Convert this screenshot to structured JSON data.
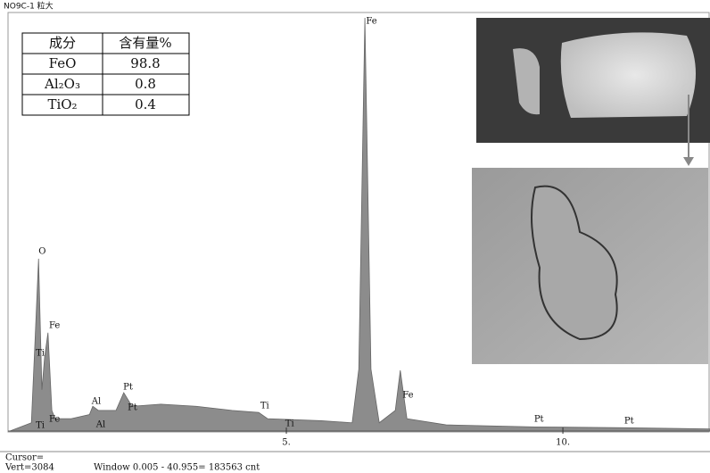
{
  "title_bar": "NO9C-1 粒大",
  "table": {
    "header": [
      "成分",
      "含有量%"
    ],
    "rows": [
      [
        "FeO",
        98.8
      ],
      [
        "Al₂O₃",
        0.8
      ],
      [
        "TiO₂",
        0.4
      ]
    ]
  },
  "footer": {
    "cursor": "Cursor=",
    "vert": "Vert=3084",
    "window": "Window 0.005 - 40.955= 183563 cnt"
  },
  "chart_data": {
    "type": "area",
    "color": "#8c8c8c",
    "x": [
      0,
      0.39,
      0.45,
      0.52,
      0.58,
      0.63,
      0.69,
      0.76,
      0.82,
      1.11,
      1.44,
      1.5,
      1.6,
      1.92,
      2.06,
      2.21,
      2.73,
      3.37,
      4.02,
      4.5,
      4.66,
      5.63,
      6.19,
      6.31,
      6.42,
      6.53,
      6.68,
      6.97,
      7.06,
      7.18,
      7.89,
      9.5,
      11.11,
      12.66
    ],
    "values": [
      0,
      2,
      20,
      41.7,
      10,
      18,
      23.8,
      5,
      3,
      3,
      4,
      6,
      5,
      5,
      9.3,
      6,
      6.5,
      6,
      5,
      4.5,
      3,
      2.5,
      2,
      15,
      100,
      15,
      2,
      5,
      14.7,
      3,
      1.5,
      1,
      0.8,
      0.5
    ],
    "xlim": [
      0,
      12.66
    ],
    "ylim": [
      0,
      100
    ],
    "xticks": [
      {
        "value": 5,
        "label": "5."
      },
      {
        "value": 10,
        "label": "10."
      }
    ],
    "annotations": [
      {
        "text": "O",
        "x": 0.52,
        "y": 43.4
      },
      {
        "text": "Fe",
        "x": 0.71,
        "y": 25.5
      },
      {
        "text": "Ti",
        "x": 0.47,
        "y": 18.8
      },
      {
        "text": "Ti",
        "x": 0.47,
        "y": 1.3
      },
      {
        "text": "Fe",
        "x": 0.71,
        "y": 2.8
      },
      {
        "text": "Al",
        "x": 1.48,
        "y": 7.1
      },
      {
        "text": "Al",
        "x": 1.56,
        "y": 1.5
      },
      {
        "text": "Pt",
        "x": 2.05,
        "y": 10.6
      },
      {
        "text": "Pt",
        "x": 2.13,
        "y": 5.6
      },
      {
        "text": "Ti",
        "x": 4.53,
        "y": 6.0
      },
      {
        "text": "Ti",
        "x": 4.98,
        "y": 1.7
      },
      {
        "text": "Fe",
        "x": 6.44,
        "y": 99.1
      },
      {
        "text": "Fe",
        "x": 7.1,
        "y": 8.6
      },
      {
        "text": "Pt",
        "x": 9.48,
        "y": 2.8
      },
      {
        "text": "Pt",
        "x": 11.11,
        "y": 2.4
      }
    ]
  }
}
